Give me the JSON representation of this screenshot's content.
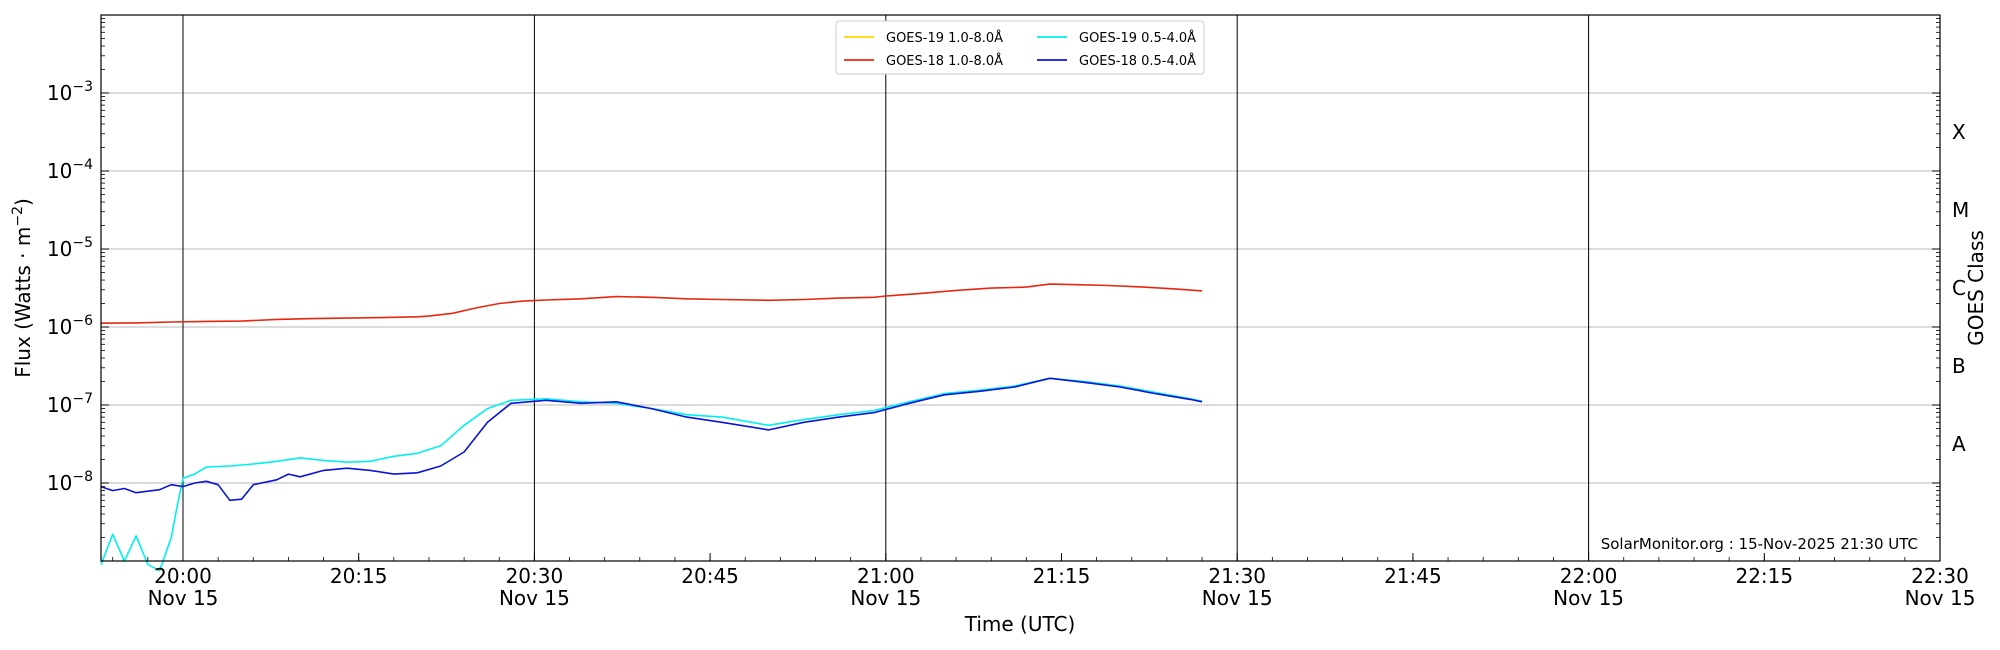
{
  "chart_data": {
    "type": "line",
    "xlabel": "Time (UTC)",
    "ylabel": "Flux (Watts · m",
    "ylabel_sup": "−2",
    "ylabel_close": ")",
    "right_label": "GOES Class",
    "watermark": "SolarMonitor.org : 15-Nov-2025 21:30 UTC",
    "x_range": [
      "19:53",
      "22:30"
    ],
    "y_log": true,
    "y_range": [
      1e-09,
      0.01
    ],
    "grid_y": true,
    "legend_position": "top-center",
    "y_ticks": [
      {
        "value": 1e-08,
        "base": "10",
        "exp": "−8"
      },
      {
        "value": 1e-07,
        "base": "10",
        "exp": "−7"
      },
      {
        "value": 1e-06,
        "base": "10",
        "exp": "−6"
      },
      {
        "value": 1e-05,
        "base": "10",
        "exp": "−5"
      },
      {
        "value": 0.0001,
        "base": "10",
        "exp": "−4"
      },
      {
        "value": 0.001,
        "base": "10",
        "exp": "−3"
      }
    ],
    "x_ticks": [
      {
        "time": "20:00",
        "label": "20:00",
        "date": "Nov 15"
      },
      {
        "time": "20:15",
        "label": "20:15",
        "date": ""
      },
      {
        "time": "20:30",
        "label": "20:30",
        "date": "Nov 15"
      },
      {
        "time": "20:45",
        "label": "20:45",
        "date": ""
      },
      {
        "time": "21:00",
        "label": "21:00",
        "date": "Nov 15"
      },
      {
        "time": "21:15",
        "label": "21:15",
        "date": ""
      },
      {
        "time": "21:30",
        "label": "21:30",
        "date": "Nov 15"
      },
      {
        "time": "21:45",
        "label": "21:45",
        "date": ""
      },
      {
        "time": "22:00",
        "label": "22:00",
        "date": "Nov 15"
      },
      {
        "time": "22:15",
        "label": "22:15",
        "date": ""
      },
      {
        "time": "22:30",
        "label": "22:30",
        "date": "Nov 15"
      }
    ],
    "vertical_lines": [
      "20:00",
      "20:30",
      "21:00",
      "21:30",
      "22:00"
    ],
    "goes_classes": [
      {
        "label": "A",
        "value": 3.16e-08
      },
      {
        "label": "B",
        "value": 3.16e-07
      },
      {
        "label": "C",
        "value": 3.16e-06
      },
      {
        "label": "M",
        "value": 3.16e-05
      },
      {
        "label": "X",
        "value": 0.000316
      }
    ],
    "series": [
      {
        "name": "GOES-19 1.0-8.0Å",
        "color": "#ffd700",
        "points": []
      },
      {
        "name": "GOES-18 1.0-8.0Å",
        "color": "#e8270f",
        "points": [
          [
            "19:53",
            1.12e-06
          ],
          [
            "19:56",
            1.13e-06
          ],
          [
            "19:59",
            1.16e-06
          ],
          [
            "20:02",
            1.18e-06
          ],
          [
            "20:05",
            1.19e-06
          ],
          [
            "20:08",
            1.25e-06
          ],
          [
            "20:11",
            1.28e-06
          ],
          [
            "20:14",
            1.3e-06
          ],
          [
            "20:17",
            1.32e-06
          ],
          [
            "20:20",
            1.35e-06
          ],
          [
            "20:21",
            1.38e-06
          ],
          [
            "20:23",
            1.5e-06
          ],
          [
            "20:25",
            1.75e-06
          ],
          [
            "20:27",
            2e-06
          ],
          [
            "20:29",
            2.15e-06
          ],
          [
            "20:31",
            2.22e-06
          ],
          [
            "20:34",
            2.3e-06
          ],
          [
            "20:37",
            2.45e-06
          ],
          [
            "20:40",
            2.4e-06
          ],
          [
            "20:43",
            2.3e-06
          ],
          [
            "20:46",
            2.25e-06
          ],
          [
            "20:50",
            2.2e-06
          ],
          [
            "20:53",
            2.25e-06
          ],
          [
            "20:56",
            2.35e-06
          ],
          [
            "20:59",
            2.4e-06
          ],
          [
            "21:00",
            2.5e-06
          ],
          [
            "21:03",
            2.7e-06
          ],
          [
            "21:06",
            2.95e-06
          ],
          [
            "21:09",
            3.15e-06
          ],
          [
            "21:12",
            3.25e-06
          ],
          [
            "21:14",
            3.55e-06
          ],
          [
            "21:16",
            3.5e-06
          ],
          [
            "21:19",
            3.4e-06
          ],
          [
            "21:22",
            3.25e-06
          ],
          [
            "21:25",
            3.05e-06
          ],
          [
            "21:27",
            2.9e-06
          ]
        ]
      },
      {
        "name": "GOES-19 0.5-4.0Å",
        "color": "#00f0f0",
        "points": [
          [
            "19:53",
            9e-10
          ],
          [
            "19:54",
            2.2e-09
          ],
          [
            "19:55",
            1e-09
          ],
          [
            "19:56",
            2.1e-09
          ],
          [
            "19:57",
            9e-10
          ],
          [
            "19:58",
            7.5e-10
          ],
          [
            "19:59",
            2e-09
          ],
          [
            "19:59:30",
            5e-09
          ],
          [
            "20:00",
            1.15e-08
          ],
          [
            "20:01",
            1.3e-08
          ],
          [
            "20:02",
            1.6e-08
          ],
          [
            "20:04",
            1.65e-08
          ],
          [
            "20:06",
            1.75e-08
          ],
          [
            "20:08",
            1.9e-08
          ],
          [
            "20:10",
            2.1e-08
          ],
          [
            "20:12",
            1.95e-08
          ],
          [
            "20:14",
            1.85e-08
          ],
          [
            "20:16",
            1.9e-08
          ],
          [
            "20:18",
            2.2e-08
          ],
          [
            "20:20",
            2.4e-08
          ],
          [
            "20:22",
            3e-08
          ],
          [
            "20:24",
            5.5e-08
          ],
          [
            "20:26",
            9e-08
          ],
          [
            "20:28",
            1.15e-07
          ],
          [
            "20:31",
            1.2e-07
          ],
          [
            "20:34",
            1.1e-07
          ],
          [
            "20:37",
            1.05e-07
          ],
          [
            "20:40",
            9e-08
          ],
          [
            "20:43",
            7.5e-08
          ],
          [
            "20:46",
            7e-08
          ],
          [
            "20:50",
            5.5e-08
          ],
          [
            "20:53",
            6.5e-08
          ],
          [
            "20:56",
            7.5e-08
          ],
          [
            "20:59",
            8.5e-08
          ],
          [
            "21:02",
            1.1e-07
          ],
          [
            "21:05",
            1.4e-07
          ],
          [
            "21:08",
            1.55e-07
          ],
          [
            "21:11",
            1.75e-07
          ],
          [
            "21:14",
            2.2e-07
          ],
          [
            "21:17",
            2e-07
          ],
          [
            "21:20",
            1.75e-07
          ],
          [
            "21:23",
            1.45e-07
          ],
          [
            "21:26",
            1.2e-07
          ],
          [
            "21:27",
            1.12e-07
          ]
        ]
      },
      {
        "name": "GOES-18 0.5-4.0Å",
        "color": "#0a14d8",
        "points": [
          [
            "19:53",
            9e-09
          ],
          [
            "19:54",
            8e-09
          ],
          [
            "19:55",
            8.5e-09
          ],
          [
            "19:56",
            7.5e-09
          ],
          [
            "19:58",
            8.2e-09
          ],
          [
            "19:59",
            9.5e-09
          ],
          [
            "20:00",
            9e-09
          ],
          [
            "20:01",
            1e-08
          ],
          [
            "20:02",
            1.05e-08
          ],
          [
            "20:03",
            9.5e-09
          ],
          [
            "20:04",
            6e-09
          ],
          [
            "20:05",
            6.2e-09
          ],
          [
            "20:06",
            9.5e-09
          ],
          [
            "20:08",
            1.1e-08
          ],
          [
            "20:09",
            1.3e-08
          ],
          [
            "20:10",
            1.2e-08
          ],
          [
            "20:12",
            1.45e-08
          ],
          [
            "20:14",
            1.55e-08
          ],
          [
            "20:16",
            1.45e-08
          ],
          [
            "20:18",
            1.3e-08
          ],
          [
            "20:20",
            1.35e-08
          ],
          [
            "20:22",
            1.65e-08
          ],
          [
            "20:24",
            2.5e-08
          ],
          [
            "20:26",
            6e-08
          ],
          [
            "20:28",
            1.05e-07
          ],
          [
            "20:31",
            1.15e-07
          ],
          [
            "20:34",
            1.05e-07
          ],
          [
            "20:37",
            1.1e-07
          ],
          [
            "20:40",
            9e-08
          ],
          [
            "20:43",
            7e-08
          ],
          [
            "20:46",
            6e-08
          ],
          [
            "20:50",
            4.8e-08
          ],
          [
            "20:53",
            6e-08
          ],
          [
            "20:56",
            7e-08
          ],
          [
            "20:59",
            8e-08
          ],
          [
            "21:02",
            1.05e-07
          ],
          [
            "21:05",
            1.35e-07
          ],
          [
            "21:08",
            1.5e-07
          ],
          [
            "21:11",
            1.7e-07
          ],
          [
            "21:14",
            2.2e-07
          ],
          [
            "21:17",
            1.95e-07
          ],
          [
            "21:20",
            1.7e-07
          ],
          [
            "21:23",
            1.4e-07
          ],
          [
            "21:26",
            1.18e-07
          ],
          [
            "21:27",
            1.1e-07
          ]
        ]
      }
    ]
  }
}
